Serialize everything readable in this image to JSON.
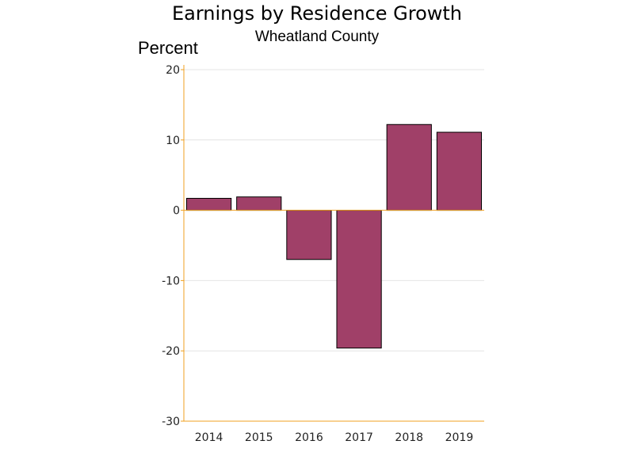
{
  "chart_data": {
    "type": "bar",
    "title": "Earnings by Residence Growth",
    "subtitle": "Wheatland County",
    "ylabel": "Percent",
    "xlabel": "",
    "categories": [
      "2014",
      "2015",
      "2016",
      "2017",
      "2018",
      "2019"
    ],
    "values": [
      1.7,
      1.9,
      -7.0,
      -19.6,
      12.2,
      11.1
    ],
    "ylim": [
      -30,
      20
    ],
    "yticks": [
      20,
      10,
      0,
      -10,
      -20,
      -30
    ],
    "grid": true,
    "legend": "none"
  },
  "colors": {
    "bar_fill": "#a04068",
    "bar_stroke": "#000000",
    "axis": "#f0a020",
    "grid": "#e4e4e4"
  }
}
